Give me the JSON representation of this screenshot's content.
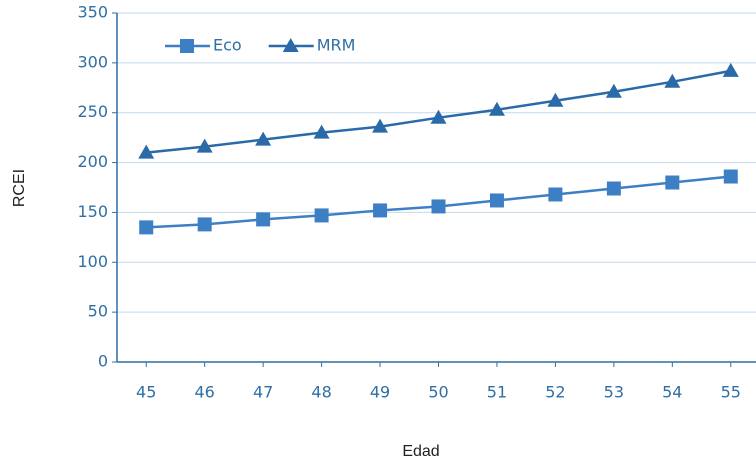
{
  "chart_data": {
    "type": "line",
    "x_label": "Edad",
    "y_label": "RCEI",
    "x": [
      45,
      46,
      47,
      48,
      49,
      50,
      51,
      52,
      53,
      54,
      55
    ],
    "series": [
      {
        "name": "Eco",
        "color": "#3d7fc4",
        "marker": "square",
        "values": [
          135,
          138,
          143,
          147,
          152,
          156,
          162,
          168,
          174,
          180,
          186
        ]
      },
      {
        "name": "MRM",
        "color": "#2a6aa8",
        "marker": "triangle",
        "values": [
          210,
          216,
          223,
          230,
          236,
          245,
          253,
          262,
          271,
          281,
          292
        ]
      }
    ],
    "xlim": [
      44.5,
      55.5
    ],
    "xticks": [
      45,
      46,
      47,
      48,
      49,
      50,
      51,
      52,
      53,
      54,
      55
    ],
    "ylim": [
      0,
      350
    ],
    "yticks": [
      0,
      50,
      100,
      150,
      200,
      250,
      300,
      350
    ],
    "grid": true,
    "legend": "top-left"
  }
}
